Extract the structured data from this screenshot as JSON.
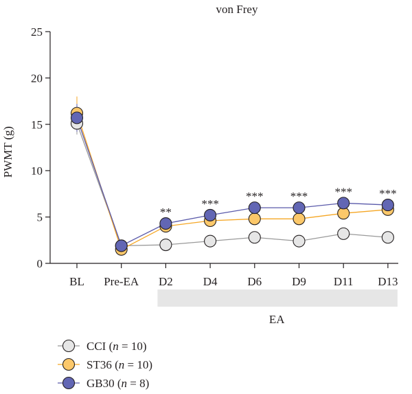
{
  "chart_data": {
    "type": "line",
    "title": "von Frey",
    "xlabel": "",
    "ylabel": "PWMT (g)",
    "ylim": [
      0,
      25
    ],
    "yticks": [
      "0",
      "5",
      "10",
      "15",
      "20",
      "25"
    ],
    "categories": [
      "BL",
      "Pre-EA",
      "D2",
      "D4",
      "D6",
      "D9",
      "D11",
      "D13"
    ],
    "grid": false,
    "legend_position": "bottom-left",
    "series": [
      {
        "name_parts": [
          "CCI (",
          "n",
          " = 10)"
        ],
        "color": "#999999",
        "marker_fill": "#e6e6e6",
        "values": [
          15.1,
          1.9,
          2.0,
          2.4,
          2.8,
          2.4,
          3.2,
          2.8
        ],
        "errors": [
          1.2,
          0.3,
          0.3,
          0.3,
          0.3,
          0.3,
          0.3,
          0.3
        ]
      },
      {
        "name_parts": [
          "ST36 (",
          "n",
          " = 10)"
        ],
        "color": "#f5a623",
        "marker_fill": "#fcc86a",
        "values": [
          16.2,
          1.5,
          4.0,
          4.6,
          4.8,
          4.8,
          5.4,
          5.8
        ],
        "errors": [
          1.8,
          0.3,
          0.3,
          0.3,
          0.3,
          0.3,
          0.3,
          0.3
        ]
      },
      {
        "name_parts": [
          "GB30 (",
          "n",
          " = 8)"
        ],
        "color": "#5a5aaa",
        "marker_fill": "#6266b4",
        "values": [
          15.7,
          1.9,
          4.3,
          5.2,
          6.0,
          6.0,
          6.5,
          6.3
        ],
        "errors": [
          1.5,
          0.3,
          0.3,
          0.3,
          0.3,
          0.3,
          0.3,
          0.3
        ]
      }
    ],
    "significance": [
      "",
      "",
      "**",
      "***",
      "***",
      "***",
      "***",
      "***"
    ],
    "bracket_label": "EA",
    "bracket_span": [
      "D2",
      "D13"
    ]
  }
}
